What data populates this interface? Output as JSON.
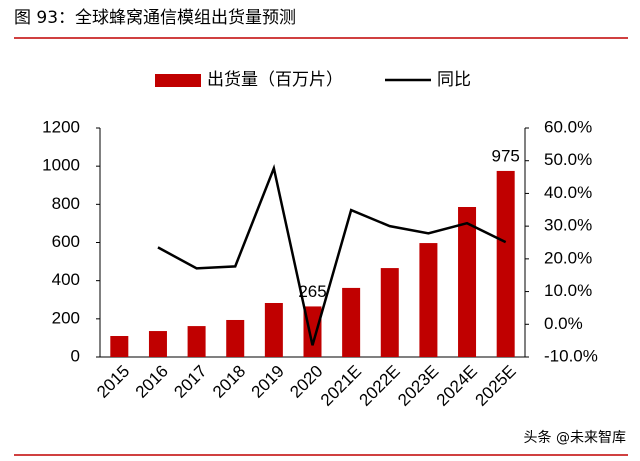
{
  "chart_data": {
    "type": "bar",
    "title": "图 93：全球蜂窝通信模组出货量预测",
    "categories": [
      "2015",
      "2016",
      "2017",
      "2018",
      "2019",
      "2020",
      "2021E",
      "2022E",
      "2023E",
      "2024E",
      "2025E"
    ],
    "series": [
      {
        "name": "出货量（百万片）",
        "type": "bar",
        "color": "#c00000",
        "values": [
          110,
          136,
          162,
          194,
          283,
          265,
          362,
          466,
          597,
          786,
          975
        ],
        "value_labels": [
          null,
          null,
          null,
          null,
          null,
          "265",
          null,
          null,
          null,
          null,
          "975"
        ]
      },
      {
        "name": "同比",
        "type": "line",
        "axis": "y2",
        "color": "#000000",
        "values": [
          null,
          23.5,
          17.1,
          17.7,
          47.7,
          -6.4,
          34.9,
          30.0,
          27.8,
          30.9,
          25.1
        ]
      }
    ],
    "ylim": [
      0,
      1200
    ],
    "yticks": [
      0,
      200,
      400,
      600,
      800,
      1000,
      1200
    ],
    "y2lim": [
      -10,
      60
    ],
    "y2ticks": [
      {
        "value": -10,
        "label": "-10.0%"
      },
      {
        "value": 0,
        "label": "0.0%"
      },
      {
        "value": 10,
        "label": "10.0%"
      },
      {
        "value": 20,
        "label": "20.0%"
      },
      {
        "value": 30,
        "label": "30.0%"
      },
      {
        "value": 40,
        "label": "40.0%"
      },
      {
        "value": 50,
        "label": "50.0%"
      },
      {
        "value": 60,
        "label": "60.0%"
      }
    ],
    "watermark": "头条 @未来智库"
  }
}
